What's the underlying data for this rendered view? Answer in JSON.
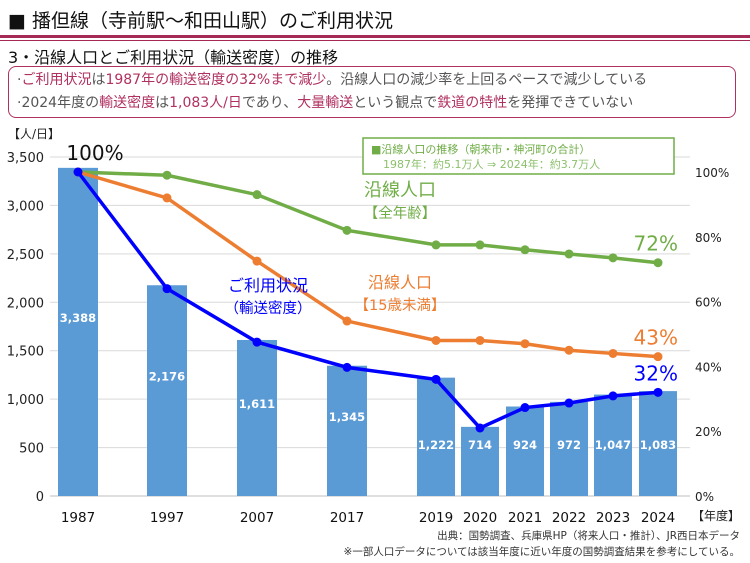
{
  "header": {
    "title": "■ 播但線（寺前駅～和田山駅）のご利用状況",
    "subtitle": "3・沿線人口とご利用状況（輸送密度）の推移"
  },
  "summary": {
    "line1": [
      {
        "t": "·",
        "h": false
      },
      {
        "t": "ご利用状況",
        "h": true
      },
      {
        "t": "は",
        "h": false
      },
      {
        "t": "1987年の輸送密度の32%まで減少",
        "h": true
      },
      {
        "t": "。沿線人口の減少率を上回るペースで減少している",
        "h": false
      }
    ],
    "line2": [
      {
        "t": "·2024年度の",
        "h": false
      },
      {
        "t": "輸送密度",
        "h": true
      },
      {
        "t": "は",
        "h": false
      },
      {
        "t": "1,083人/日",
        "h": true
      },
      {
        "t": "であり、",
        "h": false
      },
      {
        "t": "大量輸送",
        "h": true
      },
      {
        "t": "という観点で",
        "h": false
      },
      {
        "t": "鉄道の特性",
        "h": true
      },
      {
        "t": "を発揮できていない",
        "h": false
      }
    ]
  },
  "chart_data": {
    "type": "bar+line",
    "categories": [
      "1987",
      "1997",
      "2007",
      "2017",
      "2019",
      "2020",
      "2021",
      "2022",
      "2023",
      "2024"
    ],
    "ylabel_left": "【人/日】",
    "xlabel": "【年度】",
    "ylim_left": [
      0,
      3500
    ],
    "yticks_left": [
      "0",
      "500",
      "1,000",
      "1,500",
      "2,000",
      "2,500",
      "3,000",
      "3,500"
    ],
    "ylim_right": [
      0,
      100
    ],
    "yticks_right": [
      "0%",
      "20%",
      "40%",
      "60%",
      "80%",
      "100%"
    ],
    "bars": {
      "values": [
        3388,
        2176,
        1611,
        1345,
        1222,
        714,
        924,
        972,
        1047,
        1083
      ],
      "labels": [
        "3,388",
        "2,176",
        "1,611",
        "1,345",
        "1,222",
        "714",
        "924",
        "972",
        "1,047",
        "1,083"
      ],
      "color": "#5b9bd5"
    },
    "series": [
      {
        "name": "沿線人口【全年齢】",
        "name1": "沿線人口",
        "name2": "【全年齢】",
        "axis": "right",
        "color": "#70ad47",
        "values": [
          100,
          99,
          93,
          82,
          77.5,
          77.5,
          76,
          74.7,
          73.5,
          72
        ],
        "end_label": "72%"
      },
      {
        "name": "沿線人口【15歳未満】",
        "name1": "沿線人口",
        "name2": "【15歳未満】",
        "axis": "right",
        "color": "#ed7d31",
        "values": [
          100,
          92,
          72.5,
          54,
          48,
          48,
          47,
          45,
          44,
          43
        ],
        "end_label": "43%"
      },
      {
        "name": "ご利用状況（輸送密度）",
        "name1": "ご利用状況",
        "name2": "（輸送密度）",
        "axis": "right",
        "color": "#0000ff",
        "values": [
          100,
          64,
          47.5,
          39.7,
          36,
          21,
          27.3,
          28.7,
          30.9,
          32
        ],
        "end_label": "32%",
        "start_label": "100%"
      }
    ],
    "grid": true
  },
  "note_box": {
    "line1": "■沿線人口の推移（朝来市・神河町の合計）",
    "line2": "1987年：約5.1万人 ⇒ 2024年：約3.7万人"
  },
  "footer": {
    "source": "出典：国勢調査、兵庫県HP（将来人口・推計）、JR西日本データ",
    "note": "※一部人口データについては該当年度に近い年度の国勢調査結果を参考にしている。"
  }
}
